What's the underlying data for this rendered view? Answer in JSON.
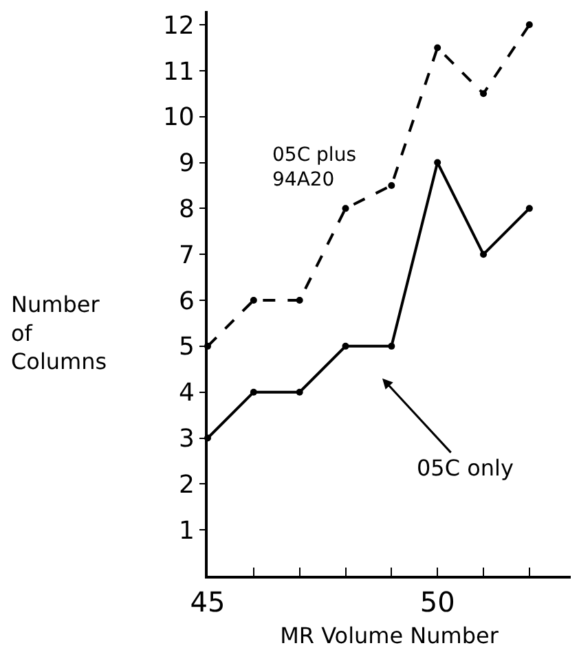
{
  "chart_data": {
    "type": "line",
    "xlabel": "MR Volume Number",
    "ylabel": "Number\nof\nColumns",
    "xlim": [
      45,
      52.9
    ],
    "xticks": [
      45,
      {
        "value": 46,
        "label": null
      },
      {
        "value": 47,
        "label": null
      },
      {
        "value": 48,
        "label": null
      },
      {
        "value": 49,
        "label": null
      },
      50,
      {
        "value": 51,
        "label": null
      },
      {
        "value": 52,
        "label": null
      }
    ],
    "ylim": [
      0,
      12.3
    ],
    "yticks": [
      1,
      2,
      3,
      4,
      5,
      6,
      7,
      8,
      9,
      10,
      11,
      12
    ],
    "x": [
      45,
      46,
      47,
      48,
      49,
      50,
      51,
      52
    ],
    "series": [
      {
        "name": "05C plus 94A20",
        "color": "#000000",
        "line_style": "dashed",
        "values": [
          5,
          6,
          6,
          8,
          8.5,
          11.5,
          10.5,
          12
        ]
      },
      {
        "name": "05C only",
        "color": "#000000",
        "line_style": "solid",
        "values": [
          3,
          4,
          4,
          5,
          5,
          9,
          7,
          8
        ]
      }
    ],
    "marker": "circle",
    "grid": false,
    "legend": false
  }
}
